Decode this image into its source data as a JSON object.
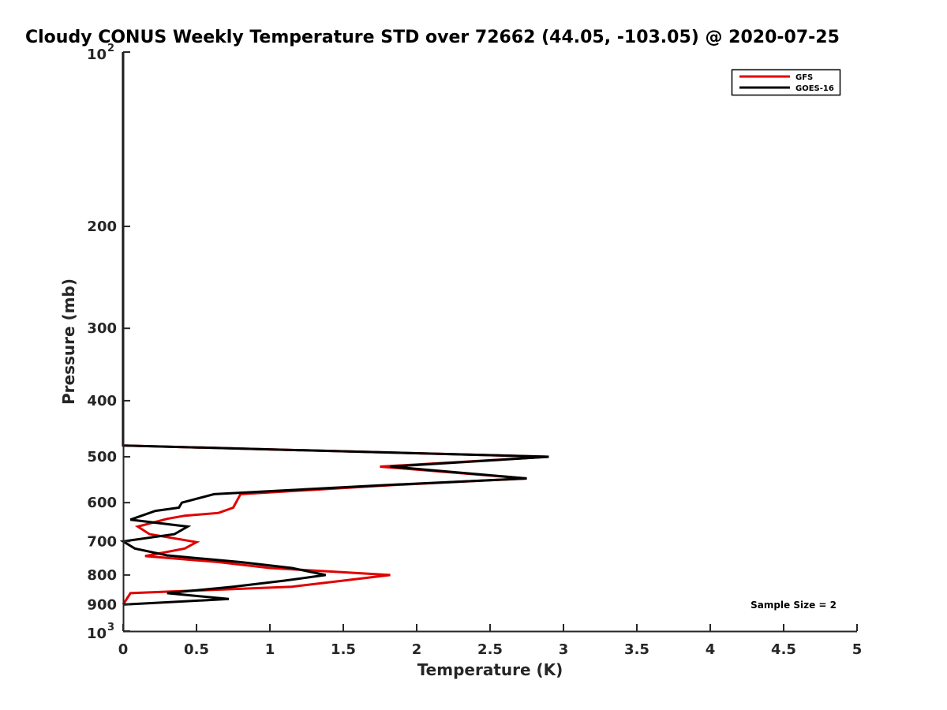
{
  "chart_data": {
    "type": "line",
    "title": "Cloudy CONUS Weekly Temperature STD over 72662 (44.05, -103.05) @ 2020-07-25",
    "xlabel": "Temperature (K)",
    "ylabel": "Pressure (mb)",
    "xlim": [
      0,
      5
    ],
    "ylim": [
      100,
      1000
    ],
    "y_scale": "log",
    "y_reversed": true,
    "x_ticks": [
      "0",
      "0.5",
      "1",
      "1.5",
      "2",
      "2.5",
      "3",
      "3.5",
      "4",
      "4.5",
      "5"
    ],
    "y_ticks": [
      "200",
      "300",
      "400",
      "500",
      "600",
      "700",
      "800",
      "900"
    ],
    "y_ticks_power": [
      {
        "base": "10",
        "exp": "2"
      },
      {
        "base": "10",
        "exp": "3"
      }
    ],
    "grid": false,
    "legend_position": "top-right",
    "annotation": "Sample Size = 2",
    "series": [
      {
        "name": "GFS",
        "color": "#e00000",
        "points": [
          [
            0,
            100
          ],
          [
            0,
            478
          ],
          [
            2.9,
            500
          ],
          [
            1.75,
            520
          ],
          [
            2.75,
            545
          ],
          [
            1.8,
            560
          ],
          [
            0.8,
            580
          ],
          [
            0.75,
            612
          ],
          [
            0.65,
            625
          ],
          [
            0.42,
            632
          ],
          [
            0.3,
            640
          ],
          [
            0.1,
            660
          ],
          [
            0.18,
            680
          ],
          [
            0.5,
            702
          ],
          [
            0.42,
            720
          ],
          [
            0.15,
            742
          ],
          [
            0.65,
            760
          ],
          [
            1.0,
            778
          ],
          [
            1.82,
            800
          ],
          [
            1.5,
            818
          ],
          [
            1.15,
            838
          ],
          [
            0.05,
            860
          ],
          [
            0,
            900
          ]
        ]
      },
      {
        "name": "GOES-16",
        "color": "#000000",
        "points": [
          [
            0,
            100
          ],
          [
            0,
            478
          ],
          [
            2.9,
            500
          ],
          [
            1.82,
            520
          ],
          [
            2.75,
            545
          ],
          [
            1.75,
            560
          ],
          [
            0.62,
            580
          ],
          [
            0.4,
            600
          ],
          [
            0.38,
            612
          ],
          [
            0.22,
            620
          ],
          [
            0.05,
            642
          ],
          [
            0.44,
            660
          ],
          [
            0.35,
            680
          ],
          [
            0,
            700
          ],
          [
            0.08,
            720
          ],
          [
            0.3,
            740
          ],
          [
            0.8,
            760
          ],
          [
            1.15,
            778
          ],
          [
            1.38,
            800
          ],
          [
            1.1,
            818
          ],
          [
            0.75,
            838
          ],
          [
            0.3,
            860
          ],
          [
            0.72,
            880
          ],
          [
            0,
            900
          ]
        ]
      }
    ]
  }
}
